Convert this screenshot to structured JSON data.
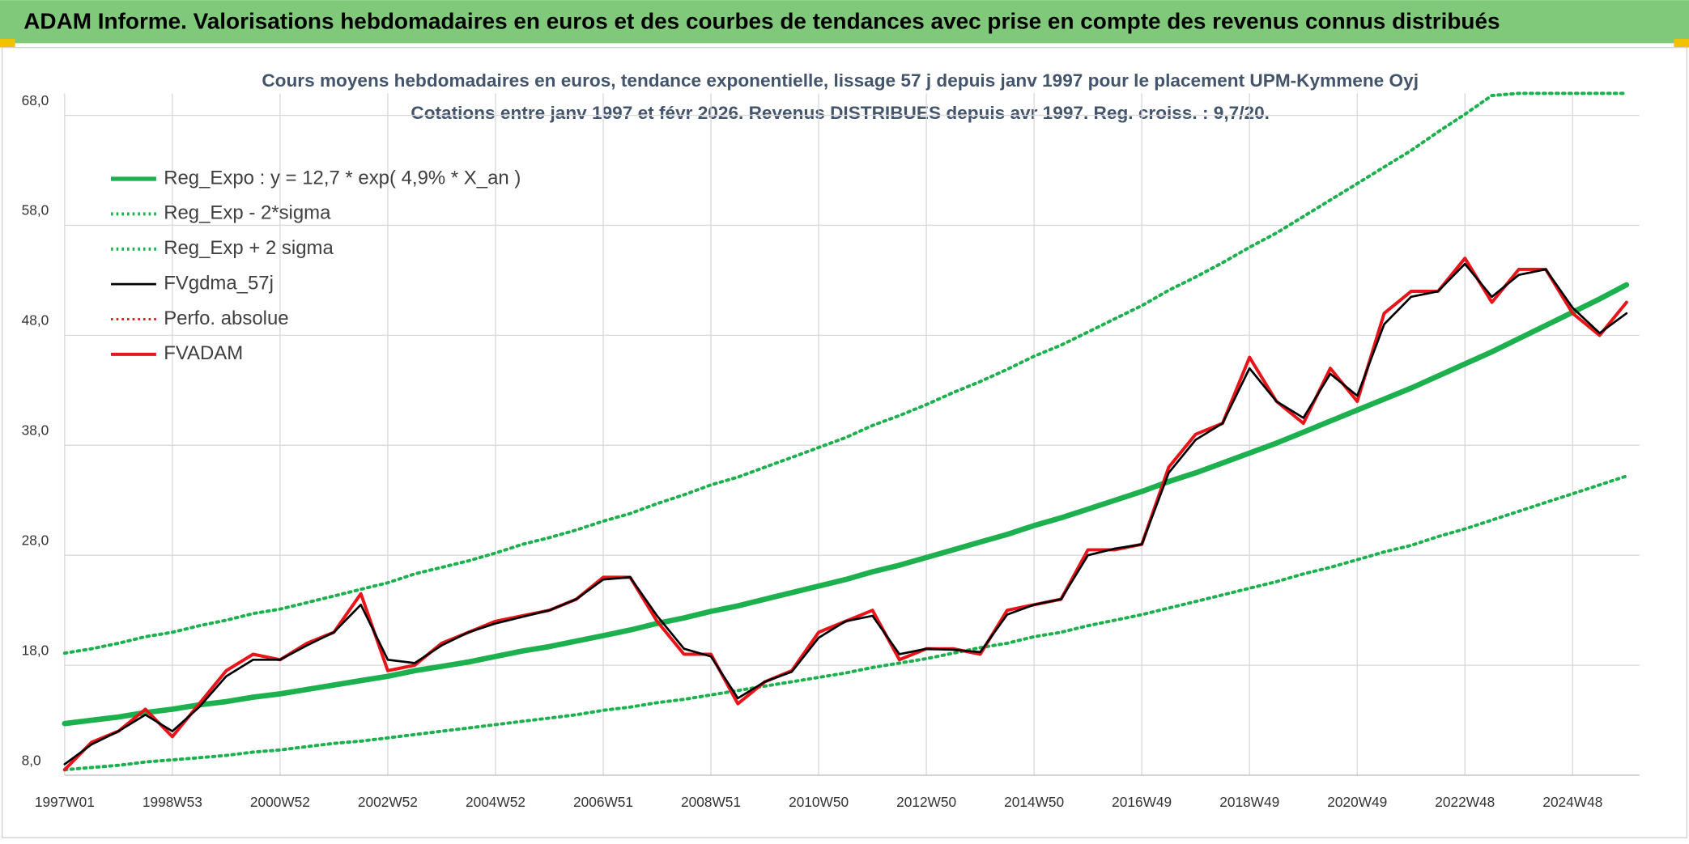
{
  "header": {
    "title": "ADAM Informe. Valorisations hebdomadaires en euros et des courbes de tendances avec prise en compte des revenus connus distribués"
  },
  "chart_data": {
    "type": "line",
    "title": "Cours moyens hebdomadaires en euros, tendance exponentielle, lissage 57 j depuis janv 1997 pour le placement UPM-Kymmene Oyj",
    "subtitle": "Cotations entre janv 1997 et févr 2026. Revenus DISTRIBUES depuis avr 1997. Reg. croiss. : 9,7/20.",
    "categories": [
      "1997W01",
      null,
      null,
      null,
      "1998W53",
      null,
      null,
      null,
      "2000W52",
      null,
      null,
      null,
      "2002W52",
      null,
      null,
      null,
      "2004W52",
      null,
      null,
      null,
      "2006W51",
      null,
      null,
      null,
      "2008W51",
      null,
      null,
      null,
      "2010W50",
      null,
      null,
      null,
      "2012W50",
      null,
      null,
      null,
      "2014W50",
      null,
      null,
      null,
      "2016W49",
      null,
      null,
      null,
      "2018W49",
      null,
      null,
      null,
      "2020W49",
      null,
      null,
      null,
      "2022W48",
      null,
      null,
      null,
      "2024W48",
      null,
      null
    ],
    "ylim": [
      8,
      70
    ],
    "yticks": [
      {
        "value": 8,
        "label": "8,0"
      },
      {
        "value": 18,
        "label": "18,0"
      },
      {
        "value": 28,
        "label": "28,0"
      },
      {
        "value": 38,
        "label": "38,0"
      },
      {
        "value": 48,
        "label": "48,0"
      },
      {
        "value": 58,
        "label": "58,0"
      },
      {
        "value": 68,
        "label": "68,0"
      }
    ],
    "grid": true,
    "legend": "upper left",
    "series": [
      {
        "name": "Reg_Expo : y = 12,7 * exp( 4,9% *  X_an )",
        "color": "#1db04e",
        "style": "solid",
        "width": 5,
        "values": [
          12.7,
          13.0,
          13.3,
          13.7,
          14.0,
          14.4,
          14.7,
          15.1,
          15.4,
          15.8,
          16.2,
          16.6,
          17.0,
          17.5,
          17.9,
          18.3,
          18.8,
          19.3,
          19.7,
          20.2,
          20.7,
          21.2,
          21.8,
          22.3,
          22.9,
          23.4,
          24.0,
          24.6,
          25.2,
          25.8,
          26.5,
          27.1,
          27.8,
          28.5,
          29.2,
          29.9,
          30.7,
          31.4,
          32.2,
          33.0,
          33.8,
          34.7,
          35.5,
          36.4,
          37.3,
          38.2,
          39.2,
          40.2,
          41.2,
          42.2,
          43.2,
          44.3,
          45.4,
          46.5,
          47.7,
          48.9,
          50.1,
          51.3,
          52.6
        ]
      },
      {
        "name": "Reg_Exp - 2*sigma",
        "color": "#1db04e",
        "style": "dotted",
        "width": 3,
        "values": [
          8.5,
          8.7,
          8.9,
          9.2,
          9.4,
          9.6,
          9.8,
          10.1,
          10.3,
          10.6,
          10.9,
          11.1,
          11.4,
          11.7,
          12.0,
          12.3,
          12.6,
          12.9,
          13.2,
          13.5,
          13.9,
          14.2,
          14.6,
          14.9,
          15.3,
          15.7,
          16.1,
          16.5,
          16.9,
          17.3,
          17.8,
          18.2,
          18.6,
          19.1,
          19.6,
          20.0,
          20.6,
          21.0,
          21.6,
          22.1,
          22.6,
          23.2,
          23.8,
          24.4,
          25.0,
          25.6,
          26.3,
          26.9,
          27.6,
          28.3,
          28.9,
          29.7,
          30.4,
          31.2,
          32.0,
          32.8,
          33.6,
          34.4,
          35.2
        ]
      },
      {
        "name": "Reg_Exp + 2 sigma",
        "color": "#1db04e",
        "style": "dotted",
        "width": 3,
        "values": [
          19.1,
          19.5,
          20.0,
          20.6,
          21.0,
          21.6,
          22.1,
          22.7,
          23.1,
          23.7,
          24.3,
          24.9,
          25.5,
          26.3,
          26.9,
          27.5,
          28.2,
          29.0,
          29.6,
          30.3,
          31.1,
          31.8,
          32.7,
          33.5,
          34.4,
          35.1,
          36.0,
          36.9,
          37.8,
          38.7,
          39.8,
          40.7,
          41.7,
          42.8,
          43.8,
          44.9,
          46.1,
          47.1,
          48.3,
          49.5,
          50.7,
          52.1,
          53.3,
          54.6,
          56.0,
          57.3,
          58.8,
          60.3,
          61.8,
          63.3,
          64.8,
          66.5,
          68.1,
          69.8,
          70,
          70,
          70,
          70,
          70
        ]
      },
      {
        "name": "FVgdma_57j",
        "color": "#000000",
        "style": "solid",
        "width": 2,
        "values": [
          9,
          10.8,
          12,
          13.5,
          12,
          14.2,
          17,
          18.5,
          18.5,
          19.8,
          21,
          23.5,
          18.5,
          18.2,
          19.8,
          21,
          21.8,
          22.4,
          23,
          24,
          25.8,
          26,
          22.5,
          19.5,
          18.8,
          15,
          16.5,
          17.4,
          20.5,
          22,
          22.5,
          19,
          19.5,
          19.4,
          19.2,
          22.6,
          23.5,
          24,
          28,
          28.6,
          29,
          35.5,
          38.5,
          40,
          45,
          42,
          40.5,
          44.5,
          42.5,
          49,
          51.5,
          52,
          54.5,
          51.5,
          53.5,
          54,
          50.5,
          48.2,
          50
        ]
      },
      {
        "name": "Perfo. absolue",
        "color": "#e00000",
        "style": "dotted",
        "width": 2,
        "values": [
          null,
          null,
          null,
          null,
          null,
          null,
          null,
          null,
          null,
          null,
          null,
          null,
          null,
          null,
          null,
          null,
          null,
          null,
          null,
          null,
          null,
          null,
          null,
          null,
          null,
          null,
          null,
          null,
          null,
          null,
          null,
          null,
          null,
          null,
          null,
          null,
          null,
          null,
          null,
          null,
          null,
          null,
          null,
          null,
          null,
          null,
          null,
          null,
          null,
          null,
          null,
          null,
          null,
          null,
          null,
          null,
          null,
          null,
          null
        ]
      },
      {
        "name": "FVADAM",
        "color": "#e8141a",
        "style": "solid",
        "width": 3,
        "values": [
          8.5,
          11,
          12,
          14,
          11.5,
          14.5,
          17.5,
          19,
          18.5,
          20,
          21,
          24.5,
          17.5,
          18,
          20,
          21,
          22,
          22.5,
          23,
          24,
          26,
          26,
          22,
          19,
          19,
          14.5,
          16.5,
          17.5,
          21,
          22,
          23,
          18.5,
          19.5,
          19.5,
          19,
          23,
          23.5,
          24,
          28.5,
          28.5,
          29,
          36,
          39,
          40,
          46,
          42,
          40,
          45,
          42,
          50,
          52,
          52,
          55,
          51,
          54,
          54,
          50,
          48,
          51
        ]
      }
    ]
  }
}
